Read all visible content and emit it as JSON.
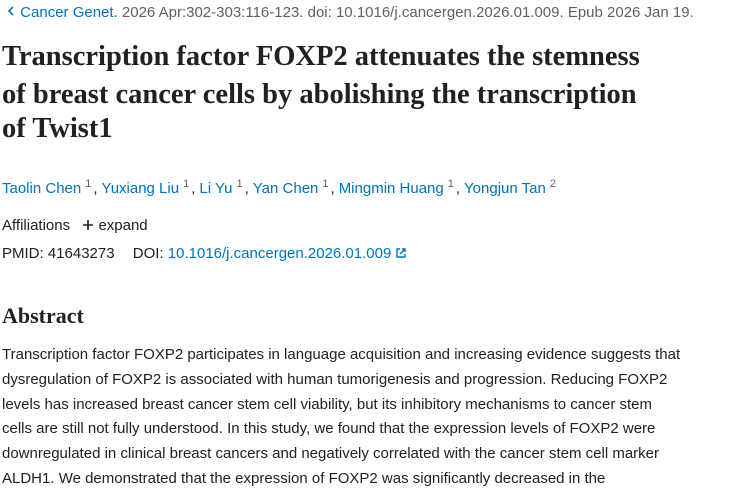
{
  "citation": {
    "journal": "Cancer Genet.",
    "details": "2026 Apr:302-303:116-123. doi: 10.1016/j.cancergen.2026.01.009. Epub 2026 Jan 19."
  },
  "title_lines": [
    "Transcription factor FOXP2 attenuates the stemness",
    "of breast cancer cells by abolishing the transcription",
    "of Twist1"
  ],
  "authors": [
    {
      "name": "Taolin Chen",
      "affiliation": "1"
    },
    {
      "name": "Yuxiang Liu",
      "affiliation": "1"
    },
    {
      "name": "Li Yu",
      "affiliation": "1"
    },
    {
      "name": "Yan Chen",
      "affiliation": "1"
    },
    {
      "name": "Mingmin Huang",
      "affiliation": "1"
    },
    {
      "name": "Yongjun Tan",
      "affiliation": "2"
    }
  ],
  "author_separator": ",",
  "affiliations": {
    "label": "Affiliations",
    "toggle": "expand"
  },
  "identifiers": {
    "pmid_label": "PMID:",
    "pmid": "41643273",
    "doi_label": "DOI:",
    "doi": "10.1016/j.cancergen.2026.01.009"
  },
  "abstract": {
    "heading": "Abstract",
    "lines": [
      "Transcription factor FOXP2 participates in language acquisition and increasing evidence suggests that",
      "dysregulation of FOXP2 is associated with human tumorigenesis and progression. Reducing FOXP2",
      "levels has increased breast cancer stem cell viability, but its inhibitory mechanisms to cancer stem",
      "cells are still not fully understood. In this study, we found that the expression levels of FOXP2 were",
      "downregulated in clinical breast cancers and negatively correlated with the cancer stem cell marker",
      "ALDH1. We demonstrated that the expression of FOXP2 was significantly decreased in the"
    ]
  }
}
